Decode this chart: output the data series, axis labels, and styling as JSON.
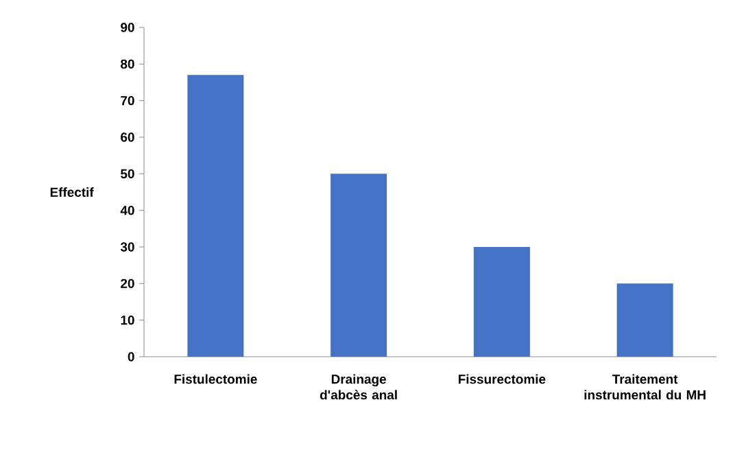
{
  "chart_data": {
    "type": "bar",
    "ylabel": "Effectif",
    "categories": [
      "Fistulectomie",
      "Drainage d'abcès anal",
      "Fissurectomie",
      "Traitement instrumental du MH"
    ],
    "values": [
      77,
      50,
      30,
      20
    ],
    "color": "#4472c4",
    "ylim": [
      0,
      90
    ],
    "yticks": [
      0,
      10,
      20,
      30,
      40,
      50,
      60,
      70,
      80,
      90
    ],
    "grid": false
  }
}
